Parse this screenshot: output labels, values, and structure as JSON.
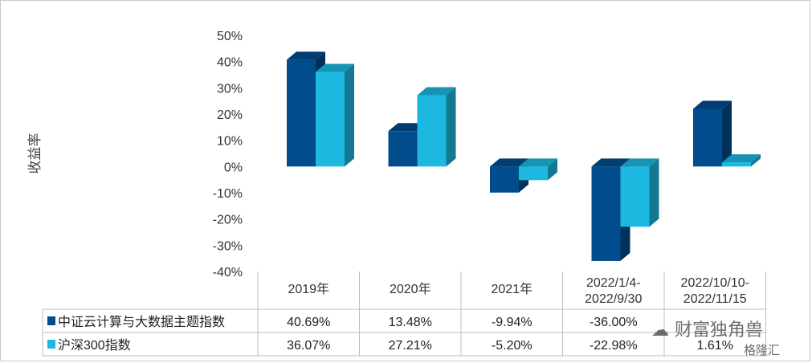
{
  "chart_data": {
    "type": "bar",
    "style": "3d-clustered-column-with-data-table",
    "ylabel": "收益率",
    "yticks": [
      "50%",
      "40%",
      "30%",
      "20%",
      "10%",
      "0%",
      "-10%",
      "-20%",
      "-30%",
      "-40%"
    ],
    "ylim": [
      -40,
      50
    ],
    "categories": [
      "2019年",
      "2020年",
      "2021年",
      "2022/1/4-\n2022/9/30",
      "2022/10/10-\n2022/11/15"
    ],
    "series": [
      {
        "name": "中证云计算与大数据主题指数",
        "color": "#004c8c",
        "values": [
          40.69,
          13.48,
          -9.94,
          -36.0,
          22.0
        ],
        "labels": [
          "40.69%",
          "13.48%",
          "-9.94%",
          "-36.00%",
          ""
        ]
      },
      {
        "name": "沪深300指数",
        "color": "#1db8e0",
        "values": [
          36.07,
          27.21,
          -5.2,
          -22.98,
          1.61
        ],
        "labels": [
          "36.07%",
          "27.21%",
          "-5.20%",
          "-22.98%",
          "1.61%"
        ]
      }
    ],
    "legend": "data-table",
    "grid": false
  },
  "watermarks": [
    "财富独角兽",
    "格隆汇"
  ]
}
